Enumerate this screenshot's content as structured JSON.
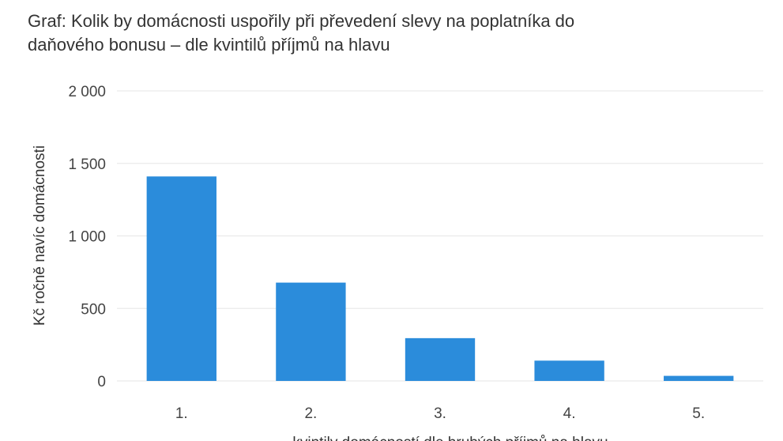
{
  "title_lines": [
    "Graf: Kolik by domácnosti uspořily při převedení slevy na poplatníka do",
    "daňového bonusu – dle kvintilů příjmů na hlavu"
  ],
  "chart_data": {
    "type": "bar",
    "title": "Graf: Kolik by domácnosti uspořily při převedení slevy na poplatníka do daňového bonusu – dle kvintilů příjmů na hlavu",
    "categories": [
      "1.",
      "2.",
      "3.",
      "4.",
      "5."
    ],
    "values": [
      1410,
      678,
      295,
      140,
      35
    ],
    "ylabel": "Kč ročně navíc domácnosti",
    "xlabel": "kvintily domácností dle hrubých příjmů na hlavu",
    "ylim": [
      0,
      2000
    ],
    "yticks": [
      0,
      500,
      1000,
      1500,
      2000
    ],
    "ytick_labels": [
      "0",
      "500",
      "1 000",
      "1 500",
      "2 000"
    ],
    "grid": true,
    "bar_color": "#2b8cdb",
    "grid_color": "#e6e6e6"
  }
}
